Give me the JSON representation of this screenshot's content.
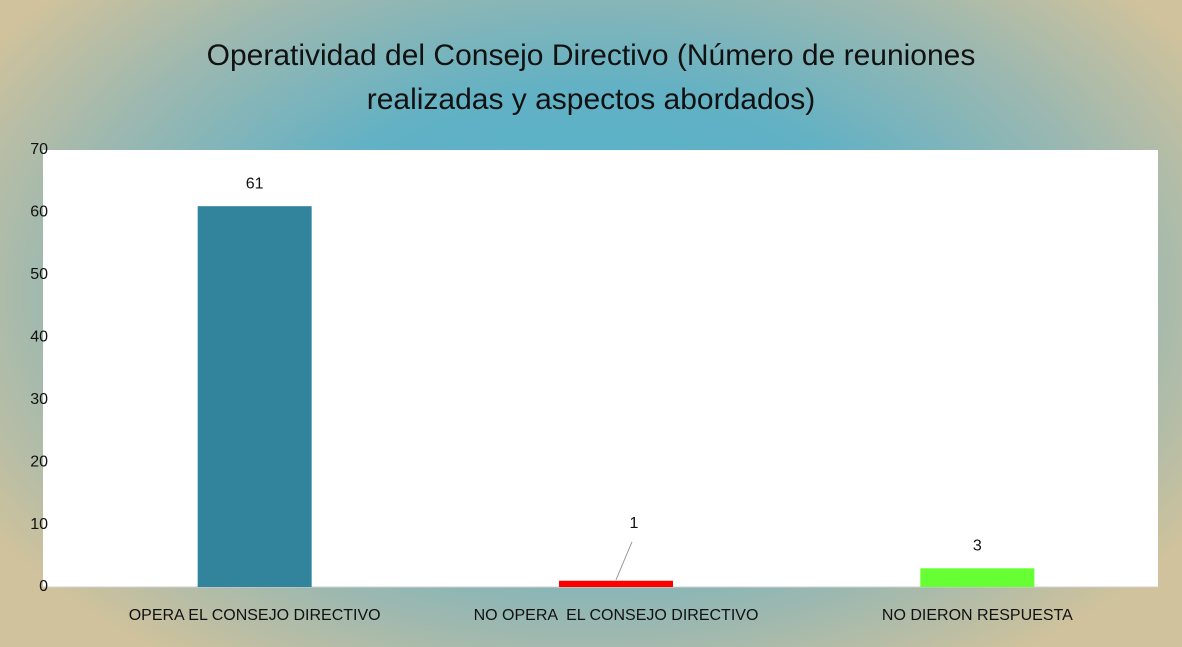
{
  "chart_data": {
    "type": "bar",
    "title": "Operatividad del Consejo Directivo (Número de reuniones realizadas y aspectos abordados)",
    "categories": [
      "OPERA EL CONSEJO DIRECTIVO",
      "NO OPERA  EL CONSEJO DIRECTIVO",
      "NO DIERON RESPUESTA"
    ],
    "values": [
      61,
      1,
      3
    ],
    "colors": [
      "#31849b",
      "#ff0000",
      "#66ff33"
    ],
    "ylim": [
      0,
      70
    ],
    "yticks": [
      0,
      10,
      20,
      30,
      40,
      50,
      60,
      70
    ],
    "grid": false
  }
}
